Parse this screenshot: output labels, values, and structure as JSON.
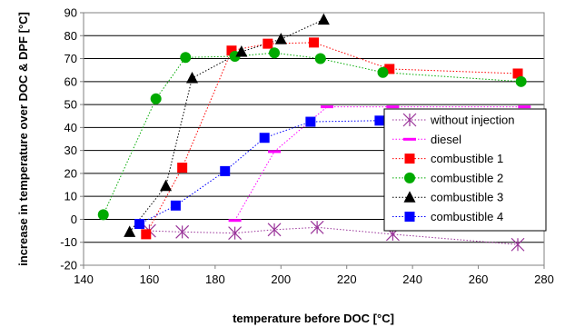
{
  "chart_data": {
    "type": "scatter",
    "title": "",
    "xlabel": "temperature before DOC [°C]",
    "ylabel": "increase in temperature over DOC & DPF [°C]",
    "xlim": [
      140,
      280
    ],
    "ylim": [
      -20,
      90
    ],
    "x_ticks": [
      140,
      160,
      180,
      200,
      220,
      240,
      260,
      280
    ],
    "y_ticks": [
      -20,
      -10,
      0,
      10,
      20,
      30,
      40,
      50,
      60,
      70,
      80,
      90
    ],
    "grid": "horizontal",
    "legend_position": "bottom-right",
    "series": [
      {
        "name": "without injection",
        "marker": "asterisk",
        "color": "#993399",
        "points": [
          [
            160,
            -5
          ],
          [
            170,
            -5.5
          ],
          [
            186,
            -6
          ],
          [
            198,
            -4.5
          ],
          [
            211,
            -3.5
          ],
          [
            234,
            -6.5
          ],
          [
            272,
            -11
          ]
        ]
      },
      {
        "name": "diesel",
        "marker": "dash",
        "color": "#ff00ff",
        "points": [
          [
            186,
            -0.5
          ],
          [
            198,
            29.5
          ],
          [
            214,
            49
          ],
          [
            234,
            49
          ],
          [
            274,
            49
          ]
        ]
      },
      {
        "name": "combustible 1",
        "marker": "square",
        "color": "#ff0000",
        "points": [
          [
            159,
            -6.5
          ],
          [
            170,
            22.5
          ],
          [
            185,
            73.5
          ],
          [
            196,
            76.5
          ],
          [
            210,
            77
          ],
          [
            233,
            65.5
          ],
          [
            272,
            63.5
          ]
        ]
      },
      {
        "name": "combustible 2",
        "marker": "circle",
        "color": "#00aa00",
        "points": [
          [
            146,
            2
          ],
          [
            162,
            52.5
          ],
          [
            171,
            70.5
          ],
          [
            186,
            71
          ],
          [
            198,
            72.5
          ],
          [
            212,
            70
          ],
          [
            231,
            64
          ],
          [
            273,
            60
          ]
        ]
      },
      {
        "name": "combustible 3",
        "marker": "triangle",
        "color": "#000000",
        "points": [
          [
            154,
            -5.5
          ],
          [
            165,
            14.5
          ],
          [
            173,
            61.5
          ],
          [
            188,
            73
          ],
          [
            200,
            78.5
          ],
          [
            213,
            87
          ]
        ]
      },
      {
        "name": "combustible 4",
        "marker": "square",
        "color": "#0000ff",
        "points": [
          [
            157,
            -2
          ],
          [
            168,
            6
          ],
          [
            183,
            21
          ],
          [
            195,
            35.5
          ],
          [
            209,
            42.5
          ],
          [
            230,
            43
          ]
        ]
      }
    ]
  }
}
